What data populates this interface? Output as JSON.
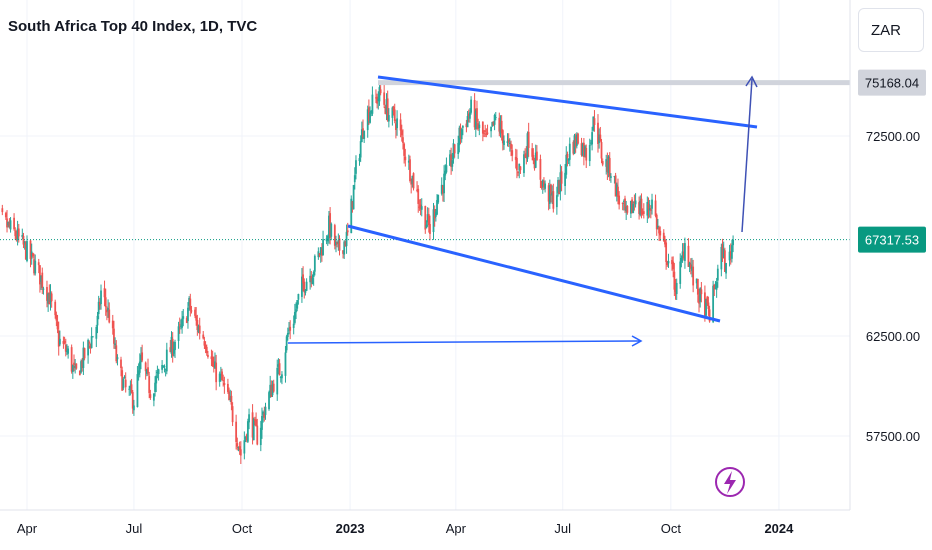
{
  "header": {
    "title": "South Africa Top 40 Index, 1D, TVC",
    "currency": "ZAR"
  },
  "colors": {
    "up": "#26a69a",
    "down": "#ef5350",
    "trendline": "#2962ff",
    "arrow": "#2962ff",
    "last_price_bg": "#089981",
    "target_price_bg": "#d1d4dc",
    "grid": "#f0f3fa",
    "lightning": "#9c27b0"
  },
  "chart_data": {
    "type": "candlestick",
    "symbol": "South Africa Top 40 Index",
    "interval": "1D",
    "source": "TVC",
    "x_ticks": [
      "Apr",
      "Jul",
      "Oct",
      "2023",
      "Apr",
      "Jul",
      "Oct",
      "2024"
    ],
    "y_ticks": [
      57500,
      62500,
      72500
    ],
    "ylim": [
      54500,
      78500
    ],
    "last_price": 67317.53,
    "last_price_label": "67317.53",
    "target_price": 75168.04,
    "target_price_label": "75168.04",
    "price_path": [
      {
        "date": "2022-03-01",
        "close": 67500
      },
      {
        "date": "2022-03-10",
        "close": 68300
      },
      {
        "date": "2022-03-22",
        "close": 67600
      },
      {
        "date": "2022-03-31",
        "close": 66800
      },
      {
        "date": "2022-04-08",
        "close": 66000
      },
      {
        "date": "2022-04-20",
        "close": 64500
      },
      {
        "date": "2022-04-28",
        "close": 62300
      },
      {
        "date": "2022-05-06",
        "close": 61600
      },
      {
        "date": "2022-05-12",
        "close": 60500
      },
      {
        "date": "2022-05-20",
        "close": 61500
      },
      {
        "date": "2022-05-31",
        "close": 63200
      },
      {
        "date": "2022-06-03",
        "close": 64700
      },
      {
        "date": "2022-06-10",
        "close": 63500
      },
      {
        "date": "2022-06-17",
        "close": 61000
      },
      {
        "date": "2022-06-24",
        "close": 59800
      },
      {
        "date": "2022-07-01",
        "close": 59300
      },
      {
        "date": "2022-07-07",
        "close": 61200
      },
      {
        "date": "2022-07-15",
        "close": 59800
      },
      {
        "date": "2022-07-22",
        "close": 60500
      },
      {
        "date": "2022-08-01",
        "close": 61800
      },
      {
        "date": "2022-08-10",
        "close": 62800
      },
      {
        "date": "2022-08-17",
        "close": 64000
      },
      {
        "date": "2022-08-24",
        "close": 63000
      },
      {
        "date": "2022-08-31",
        "close": 62300
      },
      {
        "date": "2022-09-07",
        "close": 60800
      },
      {
        "date": "2022-09-14",
        "close": 60200
      },
      {
        "date": "2022-09-22",
        "close": 58800
      },
      {
        "date": "2022-09-30",
        "close": 56600
      },
      {
        "date": "2022-10-07",
        "close": 58300
      },
      {
        "date": "2022-10-14",
        "close": 57500
      },
      {
        "date": "2022-10-21",
        "close": 59000
      },
      {
        "date": "2022-10-28",
        "close": 60200
      },
      {
        "date": "2022-11-04",
        "close": 61000
      },
      {
        "date": "2022-11-09",
        "close": 62600
      },
      {
        "date": "2022-11-14",
        "close": 63400
      },
      {
        "date": "2022-11-21",
        "close": 65000
      },
      {
        "date": "2022-11-30",
        "close": 65800
      },
      {
        "date": "2022-12-07",
        "close": 66800
      },
      {
        "date": "2022-12-14",
        "close": 68000
      },
      {
        "date": "2022-12-21",
        "close": 66700
      },
      {
        "date": "2022-12-30",
        "close": 67500
      },
      {
        "date": "2023-01-06",
        "close": 70800
      },
      {
        "date": "2023-01-13",
        "close": 73300
      },
      {
        "date": "2023-01-20",
        "close": 74100
      },
      {
        "date": "2023-01-27",
        "close": 74600
      },
      {
        "date": "2023-02-03",
        "close": 73600
      },
      {
        "date": "2023-02-10",
        "close": 73200
      },
      {
        "date": "2023-02-17",
        "close": 71600
      },
      {
        "date": "2023-02-24",
        "close": 70200
      },
      {
        "date": "2023-03-03",
        "close": 68800
      },
      {
        "date": "2023-03-10",
        "close": 67800
      },
      {
        "date": "2023-03-17",
        "close": 69600
      },
      {
        "date": "2023-03-24",
        "close": 70500
      },
      {
        "date": "2023-03-31",
        "close": 71800
      },
      {
        "date": "2023-04-07",
        "close": 73000
      },
      {
        "date": "2023-04-14",
        "close": 73800
      },
      {
        "date": "2023-04-21",
        "close": 72800
      },
      {
        "date": "2023-04-28",
        "close": 72200
      },
      {
        "date": "2023-05-05",
        "close": 73300
      },
      {
        "date": "2023-05-12",
        "close": 72400
      },
      {
        "date": "2023-05-19",
        "close": 71500
      },
      {
        "date": "2023-05-26",
        "close": 70800
      },
      {
        "date": "2023-06-02",
        "close": 72400
      },
      {
        "date": "2023-06-09",
        "close": 71000
      },
      {
        "date": "2023-06-16",
        "close": 69800
      },
      {
        "date": "2023-06-23",
        "close": 69300
      },
      {
        "date": "2023-06-30",
        "close": 70300
      },
      {
        "date": "2023-07-07",
        "close": 71900
      },
      {
        "date": "2023-07-14",
        "close": 72400
      },
      {
        "date": "2023-07-21",
        "close": 71600
      },
      {
        "date": "2023-07-28",
        "close": 73400
      },
      {
        "date": "2023-08-04",
        "close": 71300
      },
      {
        "date": "2023-08-11",
        "close": 70800
      },
      {
        "date": "2023-08-18",
        "close": 69300
      },
      {
        "date": "2023-08-25",
        "close": 68300
      },
      {
        "date": "2023-09-01",
        "close": 69400
      },
      {
        "date": "2023-09-08",
        "close": 68600
      },
      {
        "date": "2023-09-15",
        "close": 69200
      },
      {
        "date": "2023-09-22",
        "close": 67300
      },
      {
        "date": "2023-09-29",
        "close": 66300
      },
      {
        "date": "2023-10-06",
        "close": 64800
      },
      {
        "date": "2023-10-13",
        "close": 67200
      },
      {
        "date": "2023-10-20",
        "close": 65300
      },
      {
        "date": "2023-10-27",
        "close": 64200
      },
      {
        "date": "2023-11-03",
        "close": 63600
      },
      {
        "date": "2023-11-08",
        "close": 65100
      },
      {
        "date": "2023-11-14",
        "close": 66800
      },
      {
        "date": "2023-11-17",
        "close": 65800
      },
      {
        "date": "2023-11-23",
        "close": 67317.53
      }
    ]
  }
}
